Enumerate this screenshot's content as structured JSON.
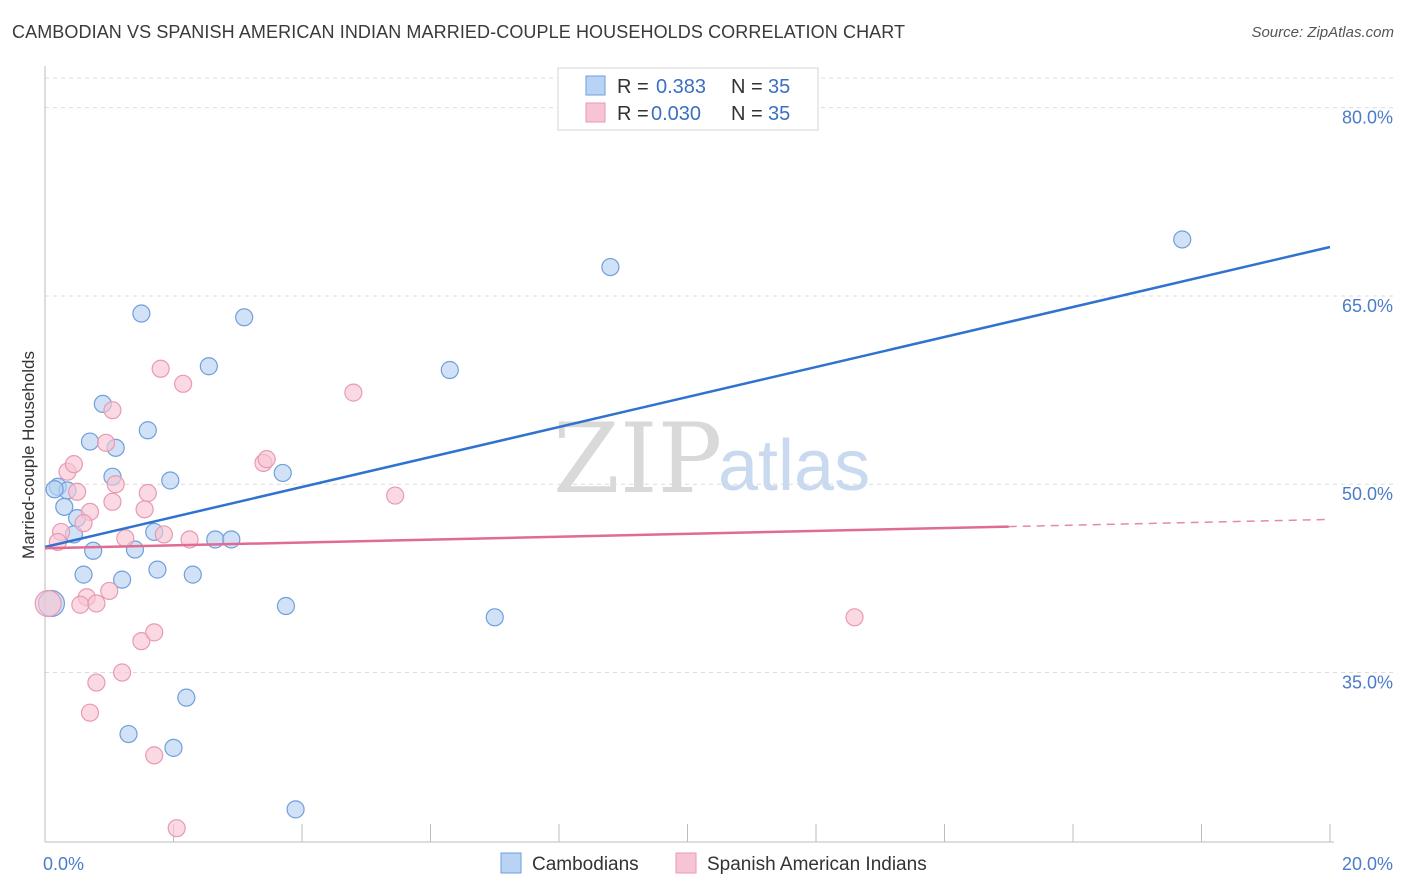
{
  "title": "CAMBODIAN VS SPANISH AMERICAN INDIAN MARRIED-COUPLE HOUSEHOLDS CORRELATION CHART",
  "source": "Source: ZipAtlas.com",
  "watermark": {
    "part1": "ZIP",
    "part2": "atlas"
  },
  "colors": {
    "blue_fill": "#b8d3f3",
    "blue_stroke": "#6f9fdc",
    "blue_line": "#2f72cf",
    "pink_fill": "#f7c4d3",
    "pink_stroke": "#e89ab3",
    "pink_line": "#e06b93",
    "grid": "#dcdcdc",
    "axis_text": "#4a7cc9"
  },
  "legend_top": {
    "rows": [
      {
        "r_label": "R =",
        "r_value": "0.383",
        "n_label": "N =",
        "n_value": "35"
      },
      {
        "r_label": "R =",
        "r_value": "0.030",
        "n_label": "N =",
        "n_value": "35"
      }
    ]
  },
  "legend_bottom": [
    "Cambodians",
    "Spanish American Indians"
  ],
  "chart_data": {
    "type": "scatter",
    "title": "CAMBODIAN VS SPANISH AMERICAN INDIAN MARRIED-COUPLE HOUSEHOLDS CORRELATION CHART",
    "xlabel": "",
    "ylabel": "Married-couple Households",
    "xlim": [
      0,
      20
    ],
    "ylim": [
      21.5,
      83
    ],
    "x_tick_labels": [
      "0.0%",
      "20.0%"
    ],
    "y_ticks": [
      35,
      50,
      65,
      80
    ],
    "y_tick_labels": [
      "35.0%",
      "50.0%",
      "65.0%",
      "80.0%"
    ],
    "grid": true,
    "legend_position": "top-center",
    "series": [
      {
        "name": "Cambodians",
        "r": 0.383,
        "n": 35,
        "trend": {
          "x0": 0,
          "y0": 45.0,
          "x1": 20,
          "y1": 68.9,
          "dashed_from": null
        },
        "points": [
          [
            0.1,
            40.5,
            16
          ],
          [
            0.2,
            49.8,
            10
          ],
          [
            0.35,
            49.5,
            10
          ],
          [
            0.3,
            48.2,
            10
          ],
          [
            0.5,
            47.3,
            10
          ],
          [
            0.45,
            46.0,
            10
          ],
          [
            0.7,
            53.4,
            10
          ],
          [
            0.9,
            56.4,
            10
          ],
          [
            1.1,
            52.9,
            10
          ],
          [
            1.05,
            50.6,
            10
          ],
          [
            0.75,
            44.7,
            10
          ],
          [
            0.6,
            42.8,
            10
          ],
          [
            1.2,
            42.4,
            10
          ],
          [
            1.4,
            44.8,
            10
          ],
          [
            1.6,
            54.3,
            10
          ],
          [
            1.5,
            63.6,
            10
          ],
          [
            1.7,
            46.2,
            10
          ],
          [
            1.75,
            43.2,
            10
          ],
          [
            1.95,
            50.3,
            10
          ],
          [
            2.3,
            42.8,
            10
          ],
          [
            2.55,
            59.4,
            10
          ],
          [
            2.65,
            45.6,
            10
          ],
          [
            2.9,
            45.6,
            10
          ],
          [
            3.1,
            63.3,
            10
          ],
          [
            3.7,
            50.9,
            10
          ],
          [
            3.75,
            40.3,
            10
          ],
          [
            6.3,
            59.1,
            10
          ],
          [
            7.0,
            39.4,
            10
          ],
          [
            8.8,
            67.3,
            10
          ],
          [
            17.7,
            69.5,
            10
          ],
          [
            2.2,
            33.0,
            10
          ],
          [
            1.3,
            30.1,
            10
          ],
          [
            2.0,
            29.0,
            10
          ],
          [
            3.9,
            24.1,
            10
          ],
          [
            0.15,
            49.6,
            10
          ]
        ]
      },
      {
        "name": "Spanish American Indians",
        "r": 0.03,
        "n": 35,
        "trend": {
          "x0": 0,
          "y0": 44.9,
          "x1": 20,
          "y1": 47.2,
          "dashed_from": 15
        },
        "points": [
          [
            0.05,
            40.5,
            16
          ],
          [
            0.25,
            46.2,
            10
          ],
          [
            0.2,
            45.4,
            10
          ],
          [
            0.35,
            51.0,
            10
          ],
          [
            0.45,
            51.6,
            10
          ],
          [
            0.5,
            49.4,
            10
          ],
          [
            0.7,
            47.8,
            10
          ],
          [
            0.6,
            46.9,
            10
          ],
          [
            0.65,
            41.0,
            10
          ],
          [
            0.55,
            40.4,
            10
          ],
          [
            0.8,
            40.5,
            10
          ],
          [
            1.0,
            41.5,
            10
          ],
          [
            0.95,
            53.3,
            10
          ],
          [
            1.05,
            48.6,
            10
          ],
          [
            1.1,
            50.0,
            10
          ],
          [
            1.05,
            55.9,
            10
          ],
          [
            1.25,
            45.7,
            10
          ],
          [
            1.5,
            37.5,
            10
          ],
          [
            1.55,
            48.0,
            10
          ],
          [
            1.6,
            49.3,
            10
          ],
          [
            1.7,
            38.2,
            10
          ],
          [
            1.8,
            59.2,
            10
          ],
          [
            1.85,
            46.0,
            10
          ],
          [
            2.15,
            58.0,
            10
          ],
          [
            2.25,
            45.6,
            10
          ],
          [
            3.4,
            51.7,
            10
          ],
          [
            3.45,
            52.0,
            10
          ],
          [
            4.8,
            57.3,
            10
          ],
          [
            5.45,
            49.1,
            10
          ],
          [
            12.6,
            39.4,
            10
          ],
          [
            0.8,
            34.2,
            10
          ],
          [
            1.2,
            35.0,
            10
          ],
          [
            0.7,
            31.8,
            10
          ],
          [
            1.7,
            28.4,
            10
          ],
          [
            2.05,
            22.6,
            10
          ]
        ]
      }
    ]
  }
}
